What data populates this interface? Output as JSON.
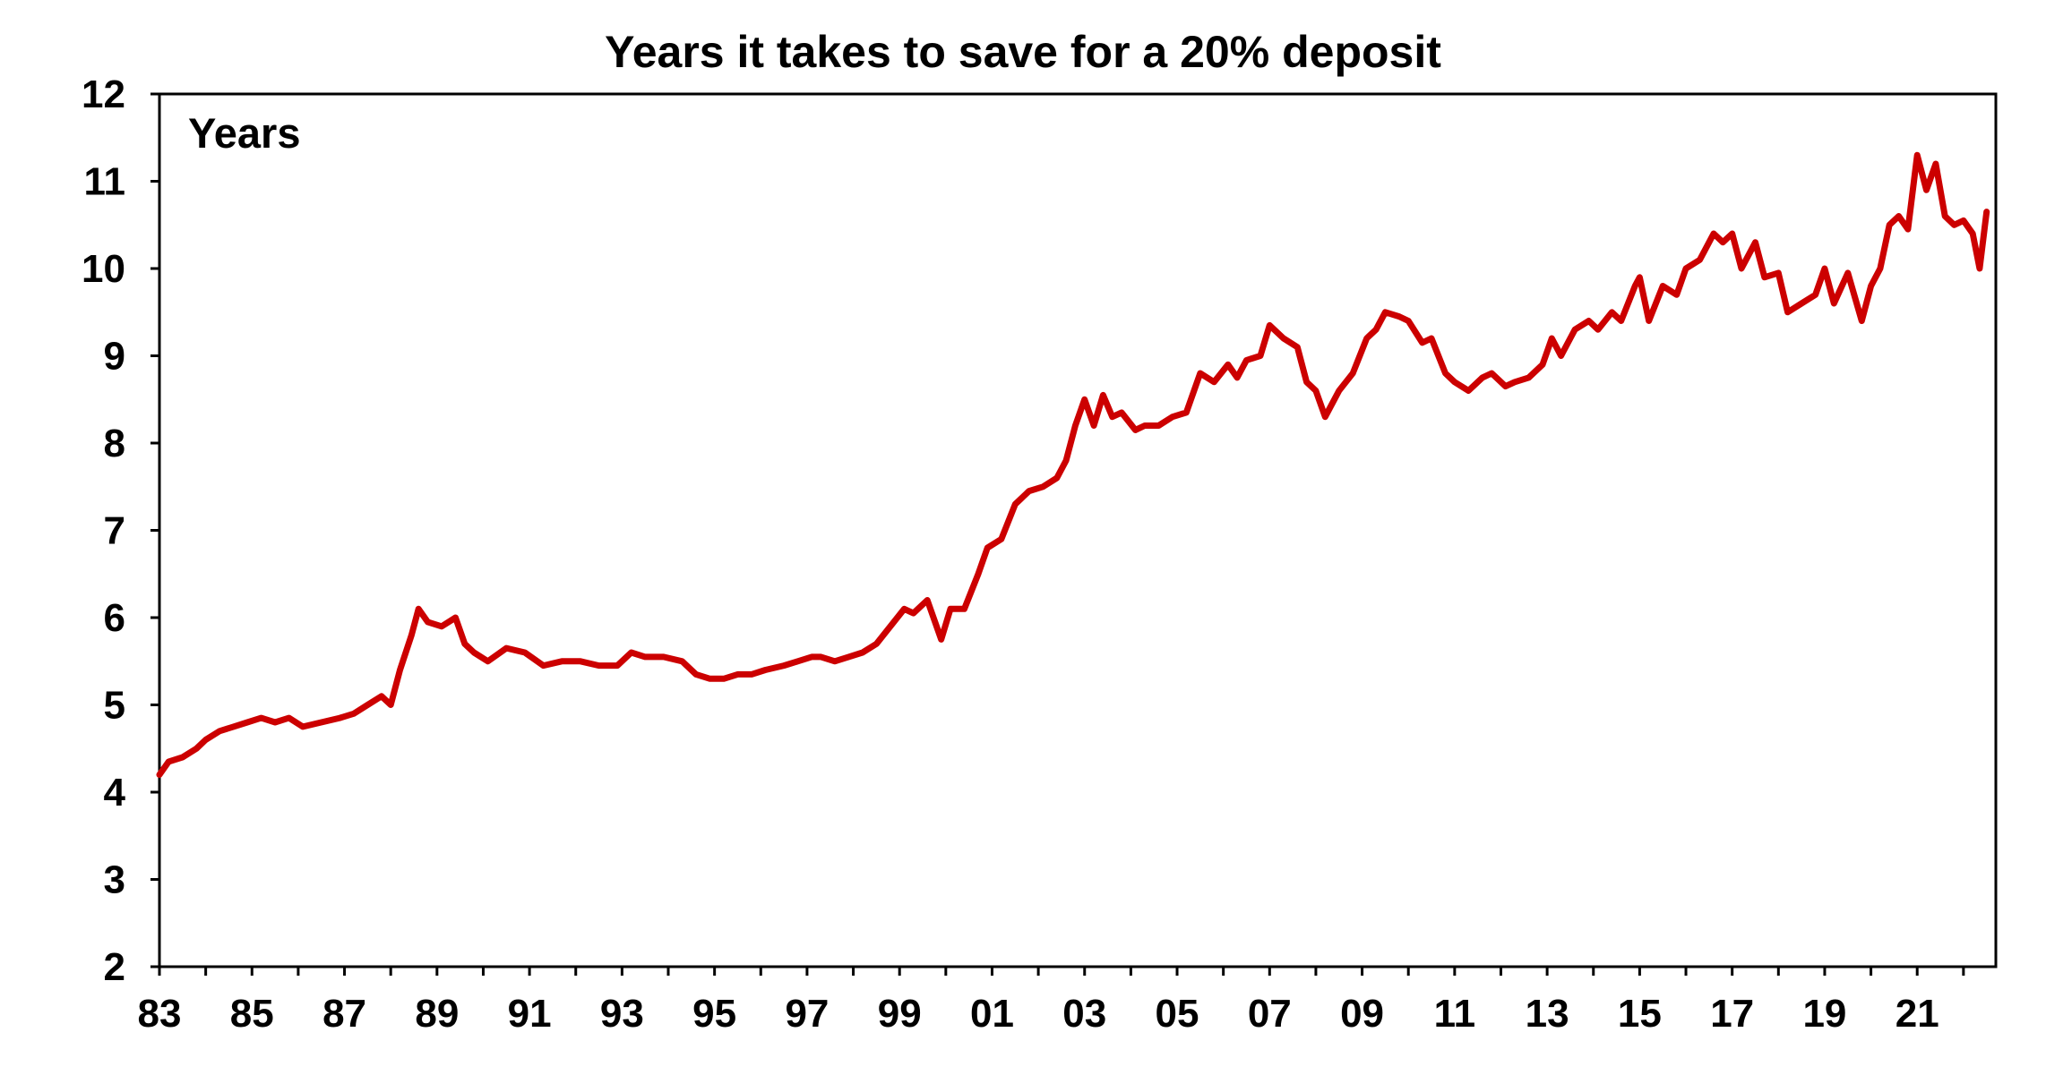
{
  "chart_data": {
    "type": "line",
    "title": "Years it takes to save for a 20% deposit",
    "unit_label": "Years",
    "xlabel": "",
    "ylabel": "",
    "xlim": [
      1983,
      2022.7
    ],
    "ylim": [
      2,
      12
    ],
    "y_ticks": [
      "2",
      "3",
      "4",
      "5",
      "6",
      "7",
      "8",
      "9",
      "10",
      "11",
      "12"
    ],
    "x_ticks": [
      {
        "value": 1983,
        "label": "83"
      },
      {
        "value": 1985,
        "label": "85"
      },
      {
        "value": 1987,
        "label": "87"
      },
      {
        "value": 1989,
        "label": "89"
      },
      {
        "value": 1991,
        "label": "91"
      },
      {
        "value": 1993,
        "label": "93"
      },
      {
        "value": 1995,
        "label": "95"
      },
      {
        "value": 1997,
        "label": "97"
      },
      {
        "value": 1999,
        "label": "99"
      },
      {
        "value": 2001,
        "label": "01"
      },
      {
        "value": 2003,
        "label": "03"
      },
      {
        "value": 2005,
        "label": "05"
      },
      {
        "value": 2007,
        "label": "07"
      },
      {
        "value": 2009,
        "label": "09"
      },
      {
        "value": 2011,
        "label": "11"
      },
      {
        "value": 2013,
        "label": "13"
      },
      {
        "value": 2015,
        "label": "15"
      },
      {
        "value": 2017,
        "label": "17"
      },
      {
        "value": 2019,
        "label": "19"
      },
      {
        "value": 2021,
        "label": "21"
      }
    ],
    "grid": false,
    "series": [
      {
        "color": "#cc0000",
        "x": [
          1983.0,
          1983.2,
          1983.5,
          1983.8,
          1984.0,
          1984.3,
          1984.6,
          1984.9,
          1985.2,
          1985.5,
          1985.8,
          1986.1,
          1986.5,
          1986.9,
          1987.2,
          1987.5,
          1987.8,
          1988.0,
          1988.2,
          1988.45,
          1988.6,
          1988.8,
          1989.1,
          1989.4,
          1989.6,
          1989.8,
          1990.1,
          1990.5,
          1990.9,
          1991.3,
          1991.7,
          1992.1,
          1992.5,
          1992.9,
          1993.2,
          1993.5,
          1993.9,
          1994.3,
          1994.6,
          1994.9,
          1995.2,
          1995.5,
          1995.8,
          1996.1,
          1996.5,
          1996.8,
          1997.1,
          1997.3,
          1997.6,
          1997.9,
          1998.2,
          1998.5,
          1998.8,
          1999.1,
          1999.3,
          1999.6,
          1999.9,
          2000.1,
          2000.4,
          2000.7,
          2000.9,
          2001.2,
          2001.5,
          2001.8,
          2002.1,
          2002.4,
          2002.6,
          2002.8,
          2003.0,
          2003.2,
          2003.4,
          2003.6,
          2003.8,
          2004.1,
          2004.3,
          2004.6,
          2004.9,
          2005.2,
          2005.5,
          2005.8,
          2006.1,
          2006.3,
          2006.5,
          2006.8,
          2007.0,
          2007.3,
          2007.6,
          2007.8,
          2008.0,
          2008.2,
          2008.5,
          2008.8,
          2009.1,
          2009.3,
          2009.5,
          2009.8,
          2010.0,
          2010.3,
          2010.5,
          2010.8,
          2011.0,
          2011.3,
          2011.6,
          2011.8,
          2012.1,
          2012.3,
          2012.6,
          2012.9,
          2013.1,
          2013.3,
          2013.6,
          2013.9,
          2014.1,
          2014.4,
          2014.6,
          2014.9,
          2015.0,
          2015.2,
          2015.5,
          2015.8,
          2016.0,
          2016.3,
          2016.6,
          2016.8,
          2017.0,
          2017.2,
          2017.5,
          2017.7,
          2018.0,
          2018.2,
          2018.5,
          2018.8,
          2019.0,
          2019.2,
          2019.5,
          2019.8,
          2020.0,
          2020.2,
          2020.4,
          2020.6,
          2020.8,
          2021.0,
          2021.2,
          2021.4,
          2021.6,
          2021.8,
          2022.0,
          2022.2,
          2022.35,
          2022.5
        ],
        "values": [
          4.2,
          4.35,
          4.4,
          4.5,
          4.6,
          4.7,
          4.75,
          4.8,
          4.85,
          4.8,
          4.85,
          4.75,
          4.8,
          4.85,
          4.9,
          5.0,
          5.1,
          5.0,
          5.4,
          5.8,
          6.1,
          5.95,
          5.9,
          6.0,
          5.7,
          5.6,
          5.5,
          5.65,
          5.6,
          5.45,
          5.5,
          5.5,
          5.45,
          5.45,
          5.6,
          5.55,
          5.55,
          5.5,
          5.35,
          5.3,
          5.3,
          5.35,
          5.35,
          5.4,
          5.45,
          5.5,
          5.55,
          5.55,
          5.5,
          5.55,
          5.6,
          5.7,
          5.9,
          6.1,
          6.05,
          6.2,
          5.75,
          6.1,
          6.1,
          6.5,
          6.8,
          6.9,
          7.3,
          7.45,
          7.5,
          7.6,
          7.8,
          8.2,
          8.5,
          8.2,
          8.55,
          8.3,
          8.35,
          8.15,
          8.2,
          8.2,
          8.3,
          8.35,
          8.8,
          8.7,
          8.9,
          8.75,
          8.95,
          9.0,
          9.35,
          9.2,
          9.1,
          8.7,
          8.6,
          8.3,
          8.6,
          8.8,
          9.2,
          9.3,
          9.5,
          9.45,
          9.4,
          9.15,
          9.2,
          8.8,
          8.7,
          8.6,
          8.75,
          8.8,
          8.65,
          8.7,
          8.75,
          8.9,
          9.2,
          9.0,
          9.3,
          9.4,
          9.3,
          9.5,
          9.4,
          9.8,
          9.9,
          9.4,
          9.8,
          9.7,
          10.0,
          10.1,
          10.4,
          10.3,
          10.4,
          10.0,
          10.3,
          9.9,
          9.95,
          9.5,
          9.6,
          9.7,
          10.0,
          9.6,
          9.95,
          9.4,
          9.8,
          10.0,
          10.5,
          10.6,
          10.45,
          11.3,
          10.9,
          11.2,
          10.6,
          10.5,
          10.55,
          10.4,
          10.0,
          10.65
        ]
      }
    ]
  }
}
